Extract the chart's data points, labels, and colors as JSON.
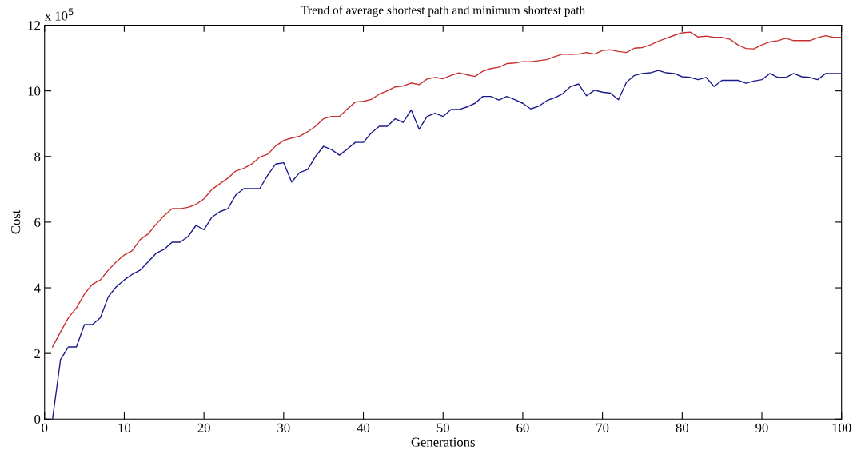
{
  "chart_data": {
    "type": "line",
    "title": "Trend of average shortest path and minimum shortest path",
    "xlabel": "Generations",
    "ylabel": "Cost",
    "annotations": [
      "x 10$^{5}$"
    ],
    "x": [
      1,
      2,
      3,
      4,
      5,
      6,
      7,
      8,
      9,
      10,
      11,
      12,
      13,
      14,
      15,
      16,
      17,
      18,
      19,
      20,
      21,
      22,
      23,
      24,
      25,
      26,
      27,
      28,
      29,
      30,
      31,
      32,
      33,
      34,
      35,
      36,
      37,
      38,
      39,
      40,
      41,
      42,
      43,
      44,
      45,
      46,
      47,
      48,
      49,
      50,
      51,
      52,
      53,
      54,
      55,
      56,
      57,
      58,
      59,
      60,
      61,
      62,
      63,
      64,
      65,
      66,
      67,
      68,
      69,
      70,
      71,
      72,
      73,
      74,
      75,
      76,
      77,
      78,
      79,
      80,
      81,
      82,
      83,
      84,
      85,
      86,
      87,
      88,
      89,
      90,
      91,
      92,
      93,
      94,
      95,
      96,
      97,
      98,
      99,
      100
    ],
    "series": [
      {
        "color": "#c8312f",
        "values": [
          2.2,
          2.66,
          3.09,
          3.39,
          3.81,
          4.11,
          4.24,
          4.54,
          4.79,
          5.0,
          5.13,
          5.47,
          5.64,
          5.94,
          6.2,
          6.41,
          6.41,
          6.45,
          6.54,
          6.71,
          7.0,
          7.17,
          7.34,
          7.56,
          7.64,
          7.77,
          7.98,
          8.07,
          8.32,
          8.49,
          8.56,
          8.62,
          8.75,
          8.92,
          9.15,
          9.22,
          9.22,
          9.45,
          9.66,
          9.68,
          9.74,
          9.9,
          10.0,
          10.12,
          10.15,
          10.24,
          10.19,
          10.36,
          10.41,
          10.37,
          10.47,
          10.55,
          10.49,
          10.44,
          10.6,
          10.68,
          10.72,
          10.83,
          10.85,
          10.89,
          10.89,
          10.92,
          10.95,
          11.04,
          11.12,
          11.11,
          11.12,
          11.17,
          11.12,
          11.23,
          11.25,
          11.2,
          11.17,
          11.3,
          11.32,
          11.4,
          11.51,
          11.6,
          11.69,
          11.77,
          11.79,
          11.64,
          11.67,
          11.63,
          11.63,
          11.57,
          11.4,
          11.29,
          11.28,
          11.4,
          11.49,
          11.53,
          11.6,
          11.53,
          11.53,
          11.53,
          11.62,
          11.68,
          11.63,
          11.63
        ]
      },
      {
        "color": "#1a1a8c",
        "values": [
          0,
          1.81,
          2.2,
          2.2,
          2.88,
          2.88,
          3.09,
          3.73,
          4.03,
          4.24,
          4.41,
          4.54,
          4.79,
          5.05,
          5.17,
          5.39,
          5.39,
          5.56,
          5.9,
          5.77,
          6.15,
          6.32,
          6.41,
          6.83,
          7.02,
          7.02,
          7.02,
          7.43,
          7.77,
          7.81,
          7.22,
          7.51,
          7.6,
          8.0,
          8.31,
          8.21,
          8.04,
          8.23,
          8.43,
          8.43,
          8.72,
          8.92,
          8.92,
          9.15,
          9.04,
          9.42,
          8.83,
          9.22,
          9.32,
          9.22,
          9.43,
          9.43,
          9.51,
          9.62,
          9.83,
          9.83,
          9.72,
          9.83,
          9.73,
          9.62,
          9.45,
          9.53,
          9.7,
          9.79,
          9.91,
          10.13,
          10.21,
          9.85,
          10.02,
          9.96,
          9.93,
          9.73,
          10.26,
          10.47,
          10.53,
          10.55,
          10.62,
          10.55,
          10.53,
          10.43,
          10.41,
          10.34,
          10.41,
          10.13,
          10.32,
          10.32,
          10.32,
          10.23,
          10.3,
          10.34,
          10.53,
          10.41,
          10.41,
          10.53,
          10.43,
          10.41,
          10.34,
          10.53,
          10.53,
          10.53
        ]
      }
    ],
    "xlim": [
      0,
      100
    ],
    "xticks": [
      0,
      10,
      20,
      30,
      40,
      50,
      60,
      70,
      80,
      90,
      100
    ],
    "ylim": [
      0,
      12
    ],
    "yticks": [
      0,
      2,
      4,
      6,
      8,
      10,
      12
    ],
    "grid": false,
    "marker": "none",
    "line_style": "solid"
  }
}
